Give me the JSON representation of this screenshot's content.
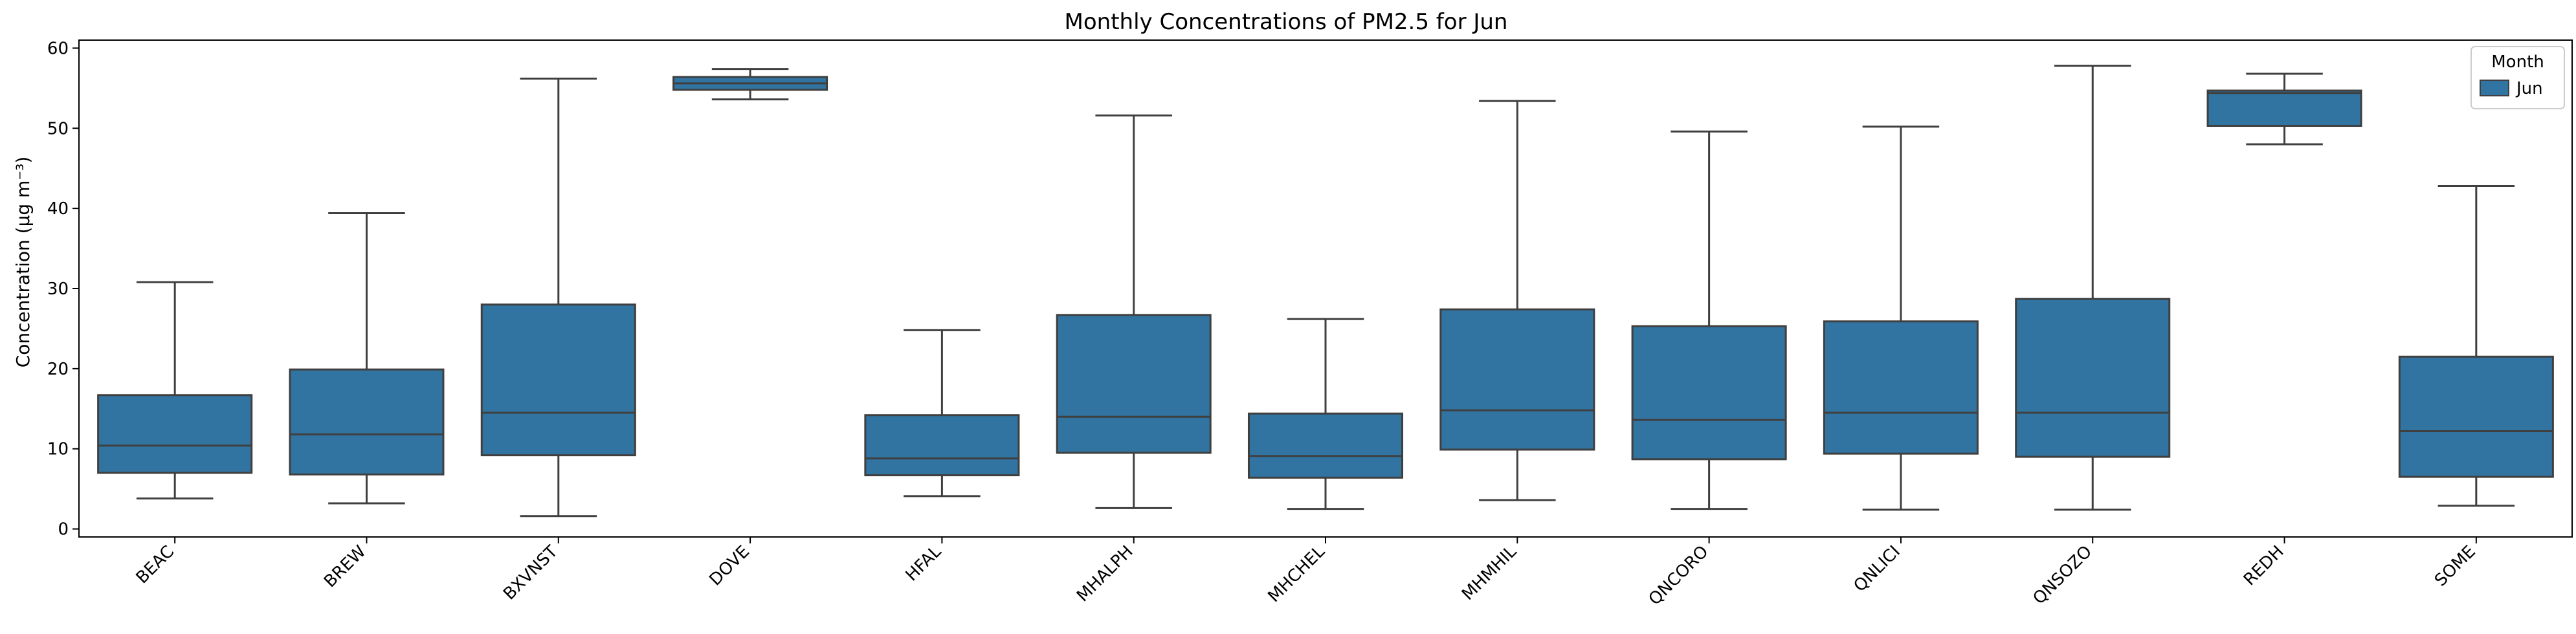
{
  "chart_data": {
    "type": "box",
    "title": "Monthly Concentrations of PM2.5 for Jun",
    "xlabel": "",
    "ylabel": "Concentration (µg m⁻³)",
    "ylim": [
      -1,
      61
    ],
    "yticks": [
      0,
      10,
      20,
      30,
      40,
      50,
      60
    ],
    "grid": false,
    "legend": {
      "title": "Month",
      "placement": "top-right",
      "entries": [
        "Jun"
      ]
    },
    "categories": [
      "BEAC",
      "BREW",
      "BXVNST",
      "DOVE",
      "HFAL",
      "MHALPH",
      "MHCHEL",
      "MHMHIL",
      "QNCORO",
      "QNLICI",
      "QNSOZO",
      "REDH",
      "SOME"
    ],
    "series": [
      {
        "name": "Jun",
        "color": "#3274a1",
        "boxes": [
          {
            "whislo": 3.8,
            "q1": 7.0,
            "med": 10.4,
            "q3": 16.7,
            "whishi": 30.8
          },
          {
            "whislo": 3.2,
            "q1": 6.8,
            "med": 11.8,
            "q3": 19.9,
            "whishi": 39.4
          },
          {
            "whislo": 1.6,
            "q1": 9.2,
            "med": 14.5,
            "q3": 28.0,
            "whishi": 56.2
          },
          {
            "whislo": 53.6,
            "q1": 54.8,
            "med": 55.6,
            "q3": 56.4,
            "whishi": 57.4
          },
          {
            "whislo": 4.1,
            "q1": 6.7,
            "med": 8.8,
            "q3": 14.2,
            "whishi": 24.8
          },
          {
            "whislo": 2.6,
            "q1": 9.5,
            "med": 14.0,
            "q3": 26.7,
            "whishi": 51.6
          },
          {
            "whislo": 2.5,
            "q1": 6.4,
            "med": 9.1,
            "q3": 14.4,
            "whishi": 26.2
          },
          {
            "whislo": 3.6,
            "q1": 9.9,
            "med": 14.8,
            "q3": 27.4,
            "whishi": 53.4
          },
          {
            "whislo": 2.5,
            "q1": 8.7,
            "med": 13.6,
            "q3": 25.3,
            "whishi": 49.6
          },
          {
            "whislo": 2.4,
            "q1": 9.4,
            "med": 14.5,
            "q3": 25.9,
            "whishi": 50.2
          },
          {
            "whislo": 2.4,
            "q1": 9.0,
            "med": 14.5,
            "q3": 28.7,
            "whishi": 57.8
          },
          {
            "whislo": 48.0,
            "q1": 50.3,
            "med": 54.4,
            "q3": 54.7,
            "whishi": 56.8
          },
          {
            "whislo": 2.9,
            "q1": 6.5,
            "med": 12.2,
            "q3": 21.5,
            "whishi": 42.8
          }
        ]
      }
    ]
  }
}
